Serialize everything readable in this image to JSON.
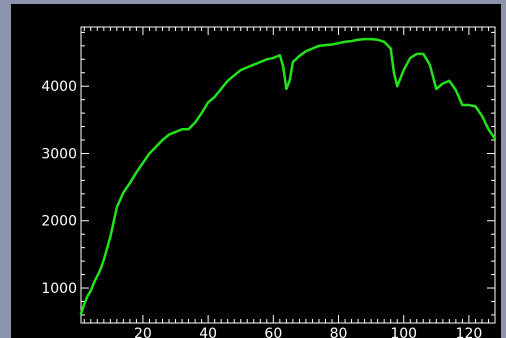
{
  "colors": {
    "frame": "#8e94ab",
    "plot_background": "#000000",
    "axis": "#ffffff",
    "line": "#22e21a"
  },
  "chart_data": {
    "type": "line",
    "title": "",
    "xlabel": "",
    "ylabel": "",
    "xlim": [
      1,
      128
    ],
    "ylim": [
      480,
      4880
    ],
    "grid": false,
    "x_ticks": [
      20,
      40,
      60,
      80,
      100,
      120
    ],
    "y_ticks": [
      1000,
      2000,
      3000,
      4000
    ],
    "series": [
      {
        "color": "#22e21a",
        "x": [
          1,
          2,
          3,
          4,
          5,
          6,
          7,
          8,
          10,
          12,
          14,
          16,
          18,
          20,
          22,
          24,
          26,
          28,
          30,
          32,
          34,
          36,
          38,
          40,
          42,
          44,
          46,
          48,
          50,
          52,
          54,
          56,
          58,
          60,
          62,
          63,
          64,
          65,
          66,
          68,
          70,
          72,
          74,
          76,
          78,
          80,
          82,
          84,
          86,
          88,
          90,
          92,
          94,
          96,
          97,
          98,
          100,
          102,
          104,
          106,
          108,
          110,
          112,
          114,
          116,
          118,
          120,
          122,
          124,
          126,
          128
        ],
        "y": [
          620,
          760,
          880,
          960,
          1080,
          1180,
          1280,
          1420,
          1760,
          2200,
          2420,
          2560,
          2720,
          2860,
          3000,
          3100,
          3200,
          3280,
          3320,
          3360,
          3360,
          3460,
          3600,
          3760,
          3840,
          3960,
          4080,
          4160,
          4240,
          4280,
          4320,
          4360,
          4400,
          4420,
          4460,
          4300,
          3960,
          4080,
          4360,
          4450,
          4520,
          4560,
          4600,
          4610,
          4620,
          4640,
          4660,
          4670,
          4690,
          4700,
          4700,
          4690,
          4660,
          4560,
          4200,
          4000,
          4240,
          4420,
          4480,
          4480,
          4320,
          3960,
          4040,
          4080,
          3940,
          3720,
          3720,
          3700,
          3560,
          3360,
          3220
        ]
      }
    ]
  }
}
